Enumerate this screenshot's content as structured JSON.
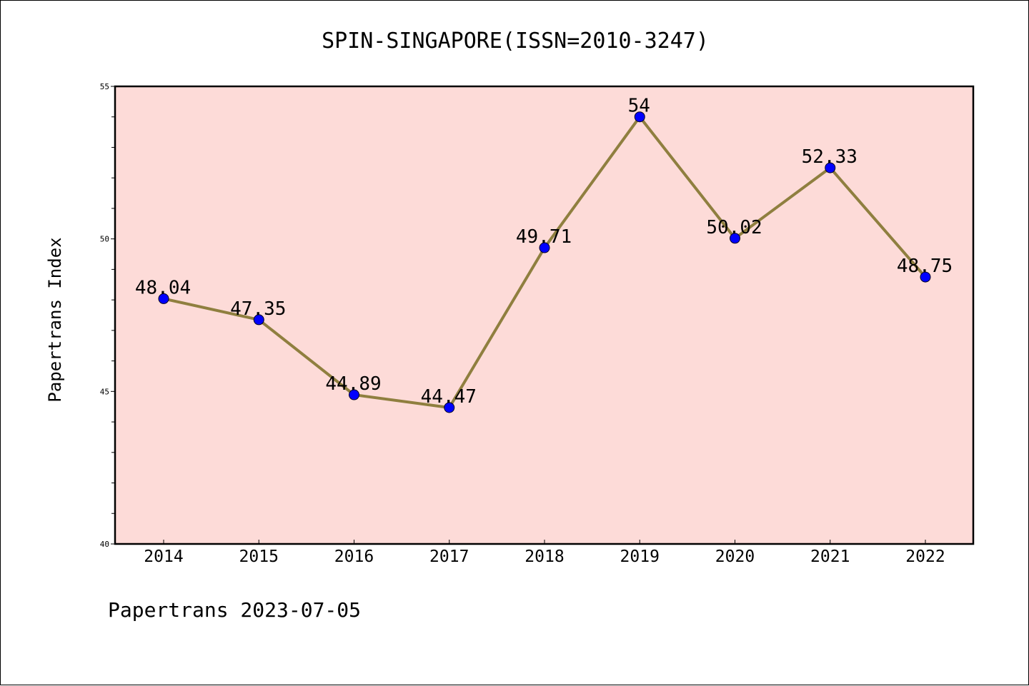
{
  "chart_data": {
    "type": "line",
    "title": "SPIN-SINGAPORE(ISSN=2010-3247)",
    "xlabel": "",
    "ylabel": "Papertrans Index",
    "categories": [
      "2014",
      "2015",
      "2016",
      "2017",
      "2018",
      "2019",
      "2020",
      "2021",
      "2022"
    ],
    "series": [
      {
        "values": [
          48.04,
          47.35,
          44.89,
          44.47,
          49.71,
          54,
          50.02,
          52.33,
          48.75
        ],
        "labels": [
          "48.04",
          "47.35",
          "44.89",
          "44.47",
          "49.71",
          "54",
          "50.02",
          "52.33",
          "48.75"
        ]
      }
    ],
    "ylim": [
      40,
      55
    ],
    "yticks": [
      "40",
      "45",
      "50",
      "55"
    ],
    "grid": false,
    "colors": {
      "line": "#8f7f3f",
      "marker": "#0000ff",
      "plot_background": "#fddbd8"
    }
  },
  "footer": {
    "text": "Papertrans 2023-07-05"
  }
}
